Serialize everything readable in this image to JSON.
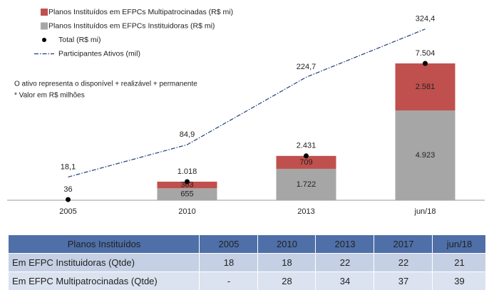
{
  "chart_data": {
    "type": "bar",
    "stacked": true,
    "categories": [
      "2005",
      "2010",
      "2013",
      "jun/18"
    ],
    "series": [
      {
        "name": "Planos Instituídos em EFPCs Multipatrocinadas (R$ mi)",
        "type": "bar",
        "color": "#c0504d",
        "values": [
          null,
          363,
          709,
          2581
        ],
        "value_labels": [
          null,
          "363",
          "709",
          "2.581"
        ]
      },
      {
        "name": "Planos Instituídos em EFPCs Instituidoras (R$ mi)",
        "type": "bar",
        "color": "#a6a6a6",
        "values": [
          null,
          655,
          1722,
          4923
        ],
        "value_labels": [
          null,
          "655",
          "1.722",
          "4.923"
        ]
      },
      {
        "name": "Total (R$ mi)",
        "type": "scatter",
        "color": "#000000",
        "values": [
          36,
          1018,
          2431,
          7504
        ],
        "value_labels": [
          "36",
          "1.018",
          "2.431",
          "7.504"
        ]
      },
      {
        "name": "Participantes Ativos (mil)",
        "type": "line",
        "axis": "y2",
        "color": "#1f3f7a",
        "values": [
          18.1,
          84.9,
          224.7,
          324.4
        ],
        "value_labels": [
          "18,1",
          "84,9",
          "224,7",
          "324,4"
        ]
      }
    ],
    "ylim": [
      0,
      10200
    ],
    "y2lim": [
      -30,
      355
    ],
    "annotations": [
      "O ativo representa o disponível + realizável + permanente",
      "* Valor em R$ milhões"
    ]
  },
  "table": {
    "header": [
      "Planos Instituídos",
      "2005",
      "2010",
      "2013",
      "2017",
      "jun/18"
    ],
    "rows": [
      [
        "Em EFPC Instituidoras (Qtde)",
        18,
        18,
        22,
        22,
        21
      ],
      [
        "Em EFPC Multipatrocinadas (Qtde)",
        "-",
        28,
        34,
        37,
        39
      ]
    ]
  }
}
